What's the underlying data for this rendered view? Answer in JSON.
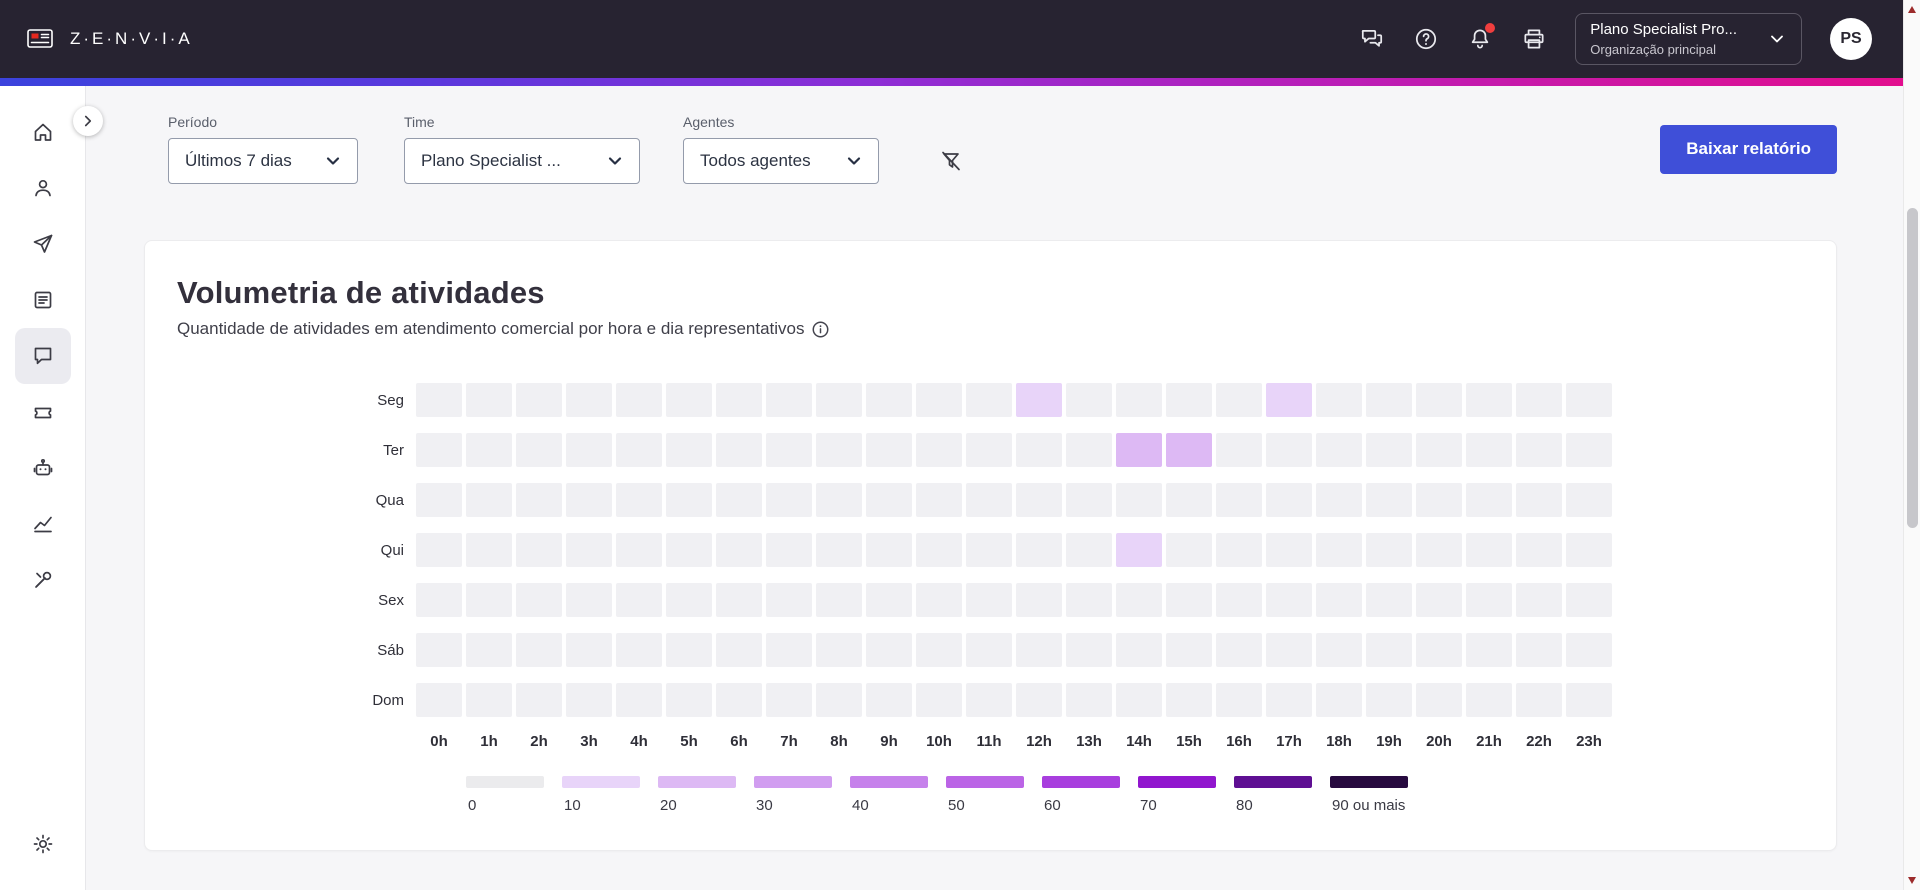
{
  "header": {
    "brand": "Z·E·N·V·I·A",
    "icons": [
      "chat-icon",
      "help-icon",
      "notifications-icon",
      "print-icon"
    ],
    "org": {
      "name": "Plano Specialist Pro...",
      "subtitle": "Organização principal"
    },
    "avatar_initials": "PS"
  },
  "sidebar": {
    "items": [
      "home",
      "contacts",
      "send",
      "reports",
      "chat",
      "ticket",
      "bot",
      "analytics",
      "tools"
    ],
    "active_item": "chat",
    "bottom_item": "settings"
  },
  "filters": {
    "period": {
      "label": "Período",
      "value": "Últimos 7 dias"
    },
    "team": {
      "label": "Time",
      "value": "Plano Specialist ..."
    },
    "agents": {
      "label": "Agentes",
      "value": "Todos agentes"
    }
  },
  "download_button": "Baixar relatório",
  "card": {
    "title": "Volumetria de atividades",
    "subtitle": "Quantidade de atividades em atendimento comercial por hora e dia representativos"
  },
  "chart_data": {
    "type": "heatmap",
    "title": "Volumetria de atividades",
    "rows": [
      "Seg",
      "Ter",
      "Qua",
      "Qui",
      "Sex",
      "Sáb",
      "Dom"
    ],
    "columns": [
      "0h",
      "1h",
      "2h",
      "3h",
      "4h",
      "5h",
      "6h",
      "7h",
      "8h",
      "9h",
      "10h",
      "11h",
      "12h",
      "13h",
      "14h",
      "15h",
      "16h",
      "17h",
      "18h",
      "19h",
      "20h",
      "21h",
      "22h",
      "23h"
    ],
    "values": [
      [
        0,
        0,
        0,
        0,
        0,
        0,
        0,
        0,
        0,
        0,
        0,
        0,
        10,
        0,
        0,
        0,
        0,
        10,
        0,
        0,
        0,
        0,
        0,
        0
      ],
      [
        0,
        0,
        0,
        0,
        0,
        0,
        0,
        0,
        0,
        0,
        0,
        0,
        0,
        0,
        20,
        20,
        0,
        0,
        0,
        0,
        0,
        0,
        0,
        0
      ],
      [
        0,
        0,
        0,
        0,
        0,
        0,
        0,
        0,
        0,
        0,
        0,
        0,
        0,
        0,
        0,
        0,
        0,
        0,
        0,
        0,
        0,
        0,
        0,
        0
      ],
      [
        0,
        0,
        0,
        0,
        0,
        0,
        0,
        0,
        0,
        0,
        0,
        0,
        0,
        0,
        10,
        0,
        0,
        0,
        0,
        0,
        0,
        0,
        0,
        0
      ],
      [
        0,
        0,
        0,
        0,
        0,
        0,
        0,
        0,
        0,
        0,
        0,
        0,
        0,
        0,
        0,
        0,
        0,
        0,
        0,
        0,
        0,
        0,
        0,
        0
      ],
      [
        0,
        0,
        0,
        0,
        0,
        0,
        0,
        0,
        0,
        0,
        0,
        0,
        0,
        0,
        0,
        0,
        0,
        0,
        0,
        0,
        0,
        0,
        0,
        0
      ],
      [
        0,
        0,
        0,
        0,
        0,
        0,
        0,
        0,
        0,
        0,
        0,
        0,
        0,
        0,
        0,
        0,
        0,
        0,
        0,
        0,
        0,
        0,
        0,
        0
      ]
    ],
    "empty_color": "#f0f0f3",
    "legend": {
      "labels": [
        "0",
        "10",
        "20",
        "30",
        "40",
        "50",
        "60",
        "70",
        "80",
        "90 ou mais"
      ],
      "colors": [
        "#ebebed",
        "#e8d4f9",
        "#ddb9f4",
        "#d19df0",
        "#c681eb",
        "#bb64e6",
        "#a83ede",
        "#9116ce",
        "#5f0f93",
        "#270a3f"
      ]
    }
  },
  "colors": {
    "accent_blue": "#3f4fd8",
    "header_dark": "#272331",
    "notification_red": "#f03e3e",
    "gradient": [
      "#3b43dd",
      "#8c2ed6",
      "#e30e8d"
    ]
  }
}
